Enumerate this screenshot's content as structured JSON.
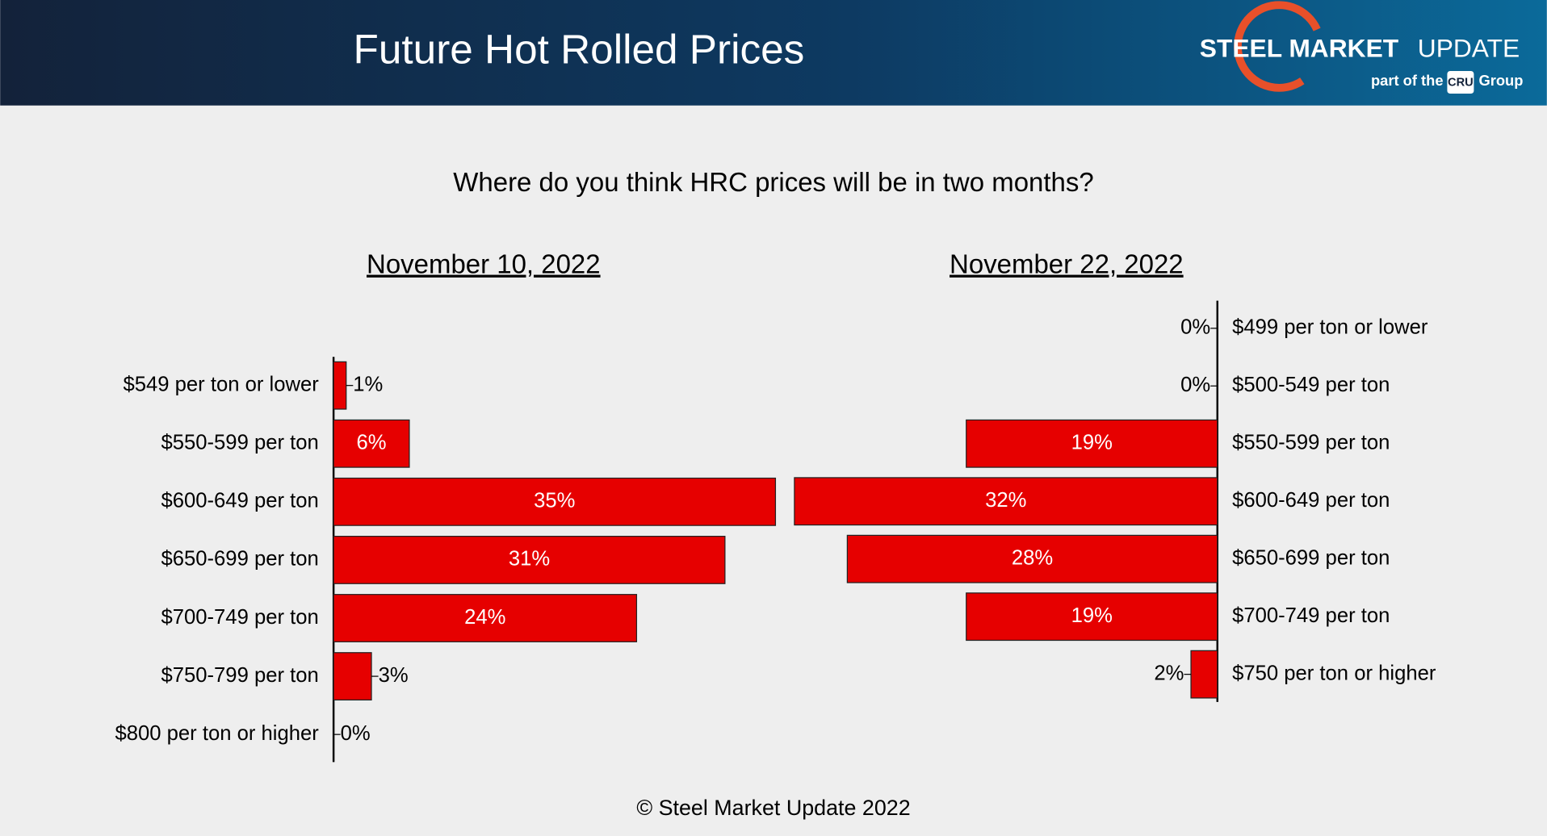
{
  "header": {
    "title": "Future Hot Rolled Prices",
    "brand_bold": "STEEL MARKET",
    "brand_light": "UPDATE",
    "brand_sub": "part of the",
    "brand_badge": "CRU",
    "brand_group": "Group"
  },
  "subtitle": "Where do you think HRC prices will be in two months?",
  "footer": "© Steel Market Update 2022",
  "chart_data": [
    {
      "type": "bar",
      "orientation": "horizontal",
      "bar_direction": "right",
      "title": "November 10, 2022",
      "categories": [
        "$549 per ton or lower",
        "$550-599 per ton",
        "$600-649 per ton",
        "$650-699 per ton",
        "$700-749 per ton",
        "$750-799 per ton",
        "$800 per ton or higher"
      ],
      "values": [
        1,
        6,
        35,
        31,
        24,
        3,
        0
      ],
      "value_labels": [
        "1%",
        "6%",
        "35%",
        "31%",
        "24%",
        "3%",
        "0%"
      ],
      "color": "#e60000"
    },
    {
      "type": "bar",
      "orientation": "horizontal",
      "bar_direction": "left",
      "title": "November 22, 2022",
      "categories": [
        "$499 per ton or lower",
        "$500-549 per ton",
        "$550-599 per ton",
        "$600-649 per ton",
        "$650-699 per ton",
        "$700-749 per ton",
        "$750 per ton or higher"
      ],
      "values": [
        0,
        0,
        19,
        32,
        28,
        19,
        2
      ],
      "value_labels": [
        "0%",
        "0%",
        "19%",
        "32%",
        "28%",
        "19%",
        "2%"
      ],
      "color": "#e60000"
    }
  ]
}
